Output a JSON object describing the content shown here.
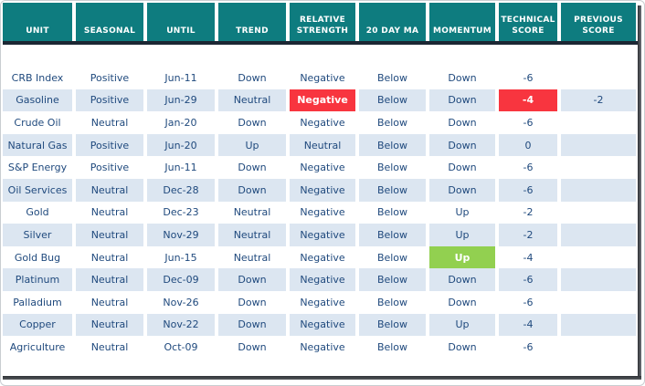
{
  "colors": {
    "header_bg": "#0E7C7F",
    "header_text": "#FFFFFF",
    "row_alt_bg": "#DCE6F1",
    "body_text": "#1F497D",
    "negative_highlight_red": "#F8353F",
    "positive_highlight_green": "#92D050",
    "header_divider": "#1C2633"
  },
  "table": {
    "columns": [
      {
        "key": "unit",
        "label": "UNIT"
      },
      {
        "key": "seasonal",
        "label": "SEASONAL"
      },
      {
        "key": "until",
        "label": "UNTIL"
      },
      {
        "key": "trend",
        "label": "TREND"
      },
      {
        "key": "relative_strength",
        "label": "RELATIVE STRENGTH"
      },
      {
        "key": "ma20",
        "label": "20 DAY MA"
      },
      {
        "key": "momentum",
        "label": "MOMENTUM"
      },
      {
        "key": "technical_score",
        "label": "TECHNICAL SCORE"
      },
      {
        "key": "previous_score",
        "label": "PREVIOUS SCORE"
      }
    ],
    "rows": [
      {
        "unit": "CRB Index",
        "seasonal": "Positive",
        "until": "Jun-11",
        "trend": "Down",
        "relative_strength": "Negative",
        "ma20": "Below",
        "momentum": "Down",
        "technical_score": "-6",
        "previous_score": "",
        "highlights": {}
      },
      {
        "unit": "Gasoline",
        "seasonal": "Positive",
        "until": "Jun-29",
        "trend": "Neutral",
        "relative_strength": "Negative",
        "ma20": "Below",
        "momentum": "Down",
        "technical_score": "-4",
        "previous_score": "-2",
        "highlights": {
          "relative_strength": "red",
          "technical_score": "red"
        }
      },
      {
        "unit": "Crude Oil",
        "seasonal": "Neutral",
        "until": "Jan-20",
        "trend": "Down",
        "relative_strength": "Negative",
        "ma20": "Below",
        "momentum": "Down",
        "technical_score": "-6",
        "previous_score": "",
        "highlights": {}
      },
      {
        "unit": "Natural Gas",
        "seasonal": "Positive",
        "until": "Jun-20",
        "trend": "Up",
        "relative_strength": "Neutral",
        "ma20": "Below",
        "momentum": "Down",
        "technical_score": "0",
        "previous_score": "",
        "highlights": {}
      },
      {
        "unit": "S&P Energy",
        "seasonal": "Positive",
        "until": "Jun-11",
        "trend": "Down",
        "relative_strength": "Negative",
        "ma20": "Below",
        "momentum": "Down",
        "technical_score": "-6",
        "previous_score": "",
        "highlights": {}
      },
      {
        "unit": "Oil Services",
        "seasonal": "Neutral",
        "until": "Dec-28",
        "trend": "Down",
        "relative_strength": "Negative",
        "ma20": "Below",
        "momentum": "Down",
        "technical_score": "-6",
        "previous_score": "",
        "highlights": {}
      },
      {
        "unit": "Gold",
        "seasonal": "Neutral",
        "until": "Dec-23",
        "trend": "Neutral",
        "relative_strength": "Negative",
        "ma20": "Below",
        "momentum": "Up",
        "technical_score": "-2",
        "previous_score": "",
        "highlights": {}
      },
      {
        "unit": "Silver",
        "seasonal": "Neutral",
        "until": "Nov-29",
        "trend": "Neutral",
        "relative_strength": "Negative",
        "ma20": "Below",
        "momentum": "Up",
        "technical_score": "-2",
        "previous_score": "",
        "highlights": {}
      },
      {
        "unit": "Gold Bug",
        "seasonal": "Neutral",
        "until": "Jun-15",
        "trend": "Neutral",
        "relative_strength": "Negative",
        "ma20": "Below",
        "momentum": "Up",
        "technical_score": "-4",
        "previous_score": "",
        "highlights": {
          "momentum": "green"
        }
      },
      {
        "unit": "Platinum",
        "seasonal": "Neutral",
        "until": "Dec-09",
        "trend": "Down",
        "relative_strength": "Negative",
        "ma20": "Below",
        "momentum": "Down",
        "technical_score": "-6",
        "previous_score": "",
        "highlights": {}
      },
      {
        "unit": "Palladium",
        "seasonal": "Neutral",
        "until": "Nov-26",
        "trend": "Down",
        "relative_strength": "Negative",
        "ma20": "Below",
        "momentum": "Down",
        "technical_score": "-6",
        "previous_score": "",
        "highlights": {}
      },
      {
        "unit": "Copper",
        "seasonal": "Neutral",
        "until": "Nov-22",
        "trend": "Down",
        "relative_strength": "Negative",
        "ma20": "Below",
        "momentum": "Up",
        "technical_score": "-4",
        "previous_score": "",
        "highlights": {}
      },
      {
        "unit": "Agriculture",
        "seasonal": "Neutral",
        "until": "Oct-09",
        "trend": "Down",
        "relative_strength": "Negative",
        "ma20": "Below",
        "momentum": "Down",
        "technical_score": "-6",
        "previous_score": "",
        "highlights": {}
      }
    ]
  }
}
